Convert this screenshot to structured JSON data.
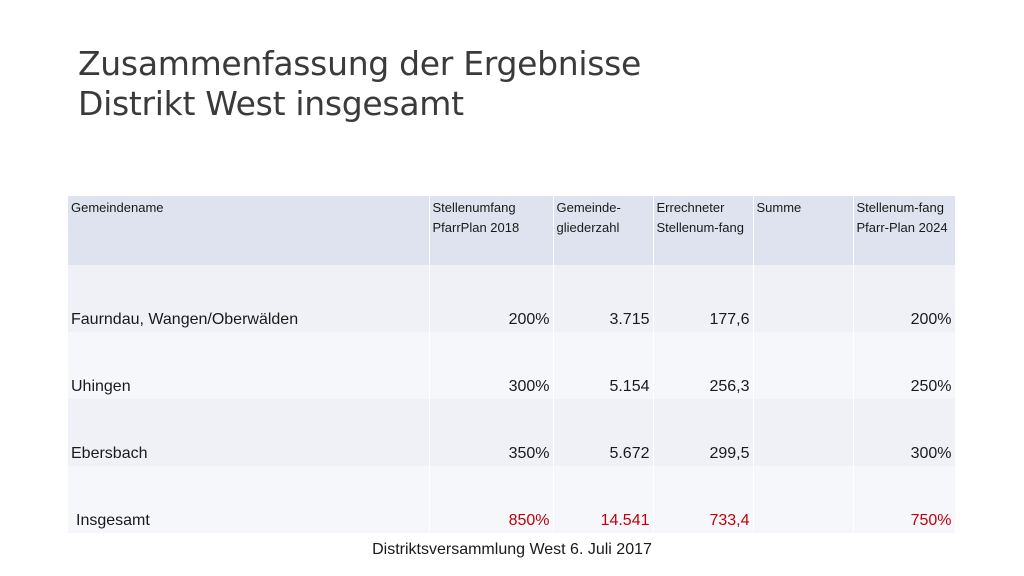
{
  "title": {
    "line1": "Zusammenfassung der Ergebnisse",
    "line2": "Distrikt West insgesamt"
  },
  "table": {
    "headers": [
      "Gemeindename",
      "Stellenumfang PfarrPlan 2018",
      "Gemeinde-gliederzahl",
      "Errechneter Stellenum-fang",
      "Summe",
      "Stellenum-fang Pfarr-Plan 2024"
    ],
    "rows": [
      {
        "name": "Faurndau, Wangen/Oberwälden",
        "stellen_2018": "200%",
        "glieder": "3.715",
        "errechnet": "177,6",
        "summe": "",
        "stellen_2024": "200%"
      },
      {
        "name": "Uhingen",
        "stellen_2018": "300%",
        "glieder": "5.154",
        "errechnet": "256,3",
        "summe": "",
        "stellen_2024": "250%"
      },
      {
        "name": "Ebersbach",
        "stellen_2018": "350%",
        "glieder": "5.672",
        "errechnet": "299,5",
        "summe": "",
        "stellen_2024": "300%"
      },
      {
        "name": "Insgesamt",
        "stellen_2018": "850%",
        "glieder": "14.541",
        "errechnet": "733,4",
        "summe": "",
        "stellen_2024": "750%"
      }
    ]
  },
  "footer": "Distriktsversammlung West 6. Juli 2017",
  "colors": {
    "header_bg": "#dee3ef",
    "row_bg_odd": "#eff1f7",
    "row_bg_even": "#f6f7fb",
    "total_text": "#c0000a"
  }
}
